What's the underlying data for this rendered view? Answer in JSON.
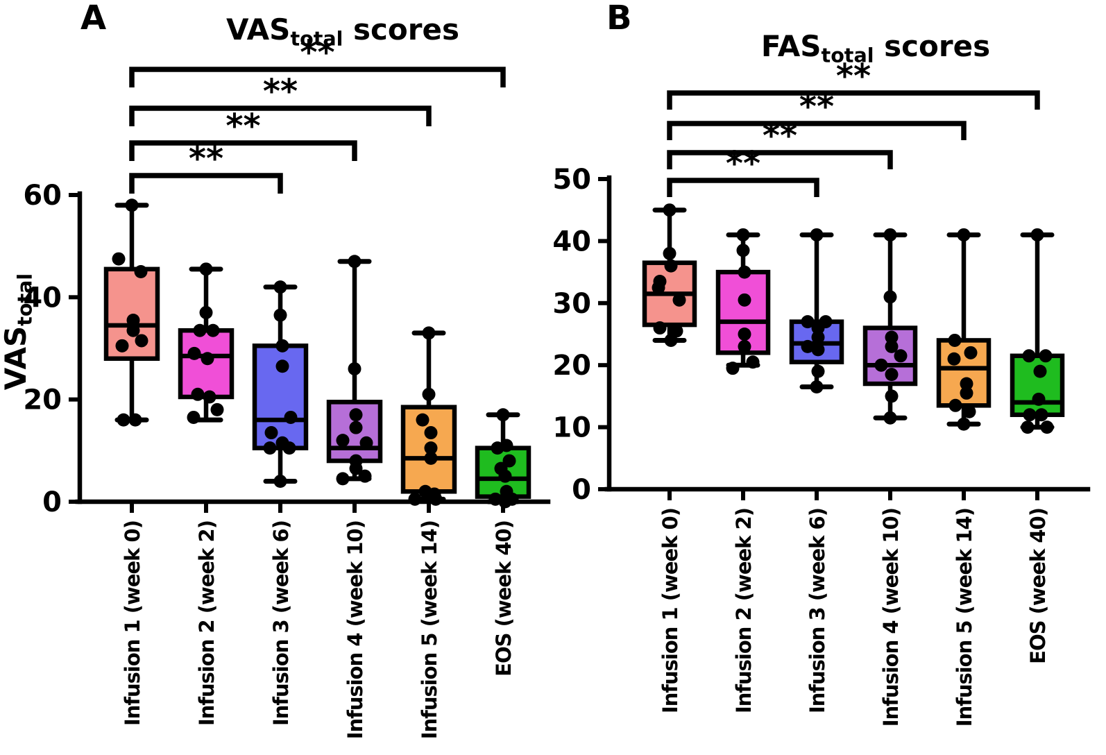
{
  "figure": {
    "background": "#FFFFFF",
    "panels": [
      {
        "letter": "A",
        "title": {
          "main": "VAS",
          "sub": "total",
          "rest": " scores"
        },
        "y_axis_label": {
          "main": "VAS",
          "sub": "total"
        }
      },
      {
        "letter": "B",
        "title": {
          "main": "FAS",
          "sub": "total",
          "rest": " scores"
        }
      }
    ]
  },
  "chart_data": [
    {
      "type": "boxplot",
      "title": "VAS_total scores",
      "ylabel": "VAS_total",
      "xlabel": "",
      "ylim": [
        0,
        60
      ],
      "yticks": [
        0,
        20,
        40,
        60
      ],
      "grid": false,
      "legend": "none",
      "categories": [
        "Infusion 1 (week 0)",
        "Infusion 2 (week 2)",
        "Infusion 3 (week 6)",
        "Infusion 4 (week 10)",
        "Infusion 5 (week 14)",
        "EOS (week 40)"
      ],
      "boxes": [
        {
          "category": "Infusion 1 (week 0)",
          "color": "#F5938D",
          "whisker_low": 16,
          "q1": 28,
          "median": 34.5,
          "q3": 45.5,
          "whisker_high": 58,
          "points": [
            [
              58,
              0
            ],
            [
              47.5,
              -19
            ],
            [
              45,
              13
            ],
            [
              35.5,
              2
            ],
            [
              33.5,
              2
            ],
            [
              31.5,
              14
            ],
            [
              30.5,
              -14
            ],
            [
              16,
              -12
            ],
            [
              16,
              5
            ]
          ]
        },
        {
          "category": "Infusion 2 (week 2)",
          "color": "#F04FD7",
          "whisker_low": 16,
          "q1": 20.5,
          "median": 28.5,
          "q3": 33.5,
          "whisker_high": 45.5,
          "points": [
            [
              45.5,
              0
            ],
            [
              37,
              0
            ],
            [
              33.5,
              -9
            ],
            [
              33.5,
              10
            ],
            [
              29,
              -17
            ],
            [
              28,
              2
            ],
            [
              21,
              -12
            ],
            [
              20.5,
              5
            ],
            [
              18,
              16
            ],
            [
              16.5,
              -18
            ]
          ]
        },
        {
          "category": "Infusion 3 (week 6)",
          "color": "#6868F0",
          "whisker_low": 4,
          "q1": 10.5,
          "median": 16,
          "q3": 30.5,
          "whisker_high": 42,
          "points": [
            [
              42,
              0
            ],
            [
              36.5,
              0
            ],
            [
              30.5,
              3
            ],
            [
              26.5,
              3
            ],
            [
              16.5,
              15
            ],
            [
              13.5,
              -13
            ],
            [
              11.5,
              3
            ],
            [
              10.5,
              -15
            ],
            [
              10.5,
              13
            ],
            [
              4,
              0
            ]
          ]
        },
        {
          "category": "Infusion 4 (week 10)",
          "color": "#B66FD8",
          "whisker_low": 4.5,
          "q1": 8,
          "median": 10.5,
          "q3": 19.5,
          "whisker_high": 47,
          "points": [
            [
              47,
              0
            ],
            [
              26,
              0
            ],
            [
              17,
              2
            ],
            [
              14.5,
              2
            ],
            [
              12,
              -17
            ],
            [
              11.5,
              17
            ],
            [
              8,
              2
            ],
            [
              6.5,
              2
            ],
            [
              5,
              15
            ],
            [
              4.5,
              -17
            ]
          ]
        },
        {
          "category": "Infusion 5 (week 14)",
          "color": "#F6A850",
          "whisker_low": 0.5,
          "q1": 2,
          "median": 8.5,
          "q3": 18.5,
          "whisker_high": 33,
          "points": [
            [
              33,
              0
            ],
            [
              21,
              0
            ],
            [
              16,
              -9
            ],
            [
              13.5,
              3
            ],
            [
              10.5,
              3
            ],
            [
              8.5,
              3
            ],
            [
              2,
              -5
            ],
            [
              1.5,
              8
            ],
            [
              0.5,
              -20
            ],
            [
              0.5,
              10
            ]
          ]
        },
        {
          "category": "EOS (week 40)",
          "color": "#1FBC1F",
          "whisker_low": 0,
          "q1": 1,
          "median": 4.5,
          "q3": 10.5,
          "whisker_high": 17,
          "points": [
            [
              17,
              0
            ],
            [
              11,
              5
            ],
            [
              10.5,
              -8
            ],
            [
              8,
              9
            ],
            [
              6.5,
              -3
            ],
            [
              5,
              3
            ],
            [
              2,
              5
            ],
            [
              0.5,
              -11
            ],
            [
              0.5,
              13
            ],
            [
              0,
              3
            ]
          ]
        }
      ],
      "significance": [
        {
          "from": 0,
          "to": 5,
          "label": "**"
        },
        {
          "from": 0,
          "to": 4,
          "label": "**"
        },
        {
          "from": 0,
          "to": 3,
          "label": "**"
        },
        {
          "from": 0,
          "to": 2,
          "label": "**"
        }
      ]
    },
    {
      "type": "boxplot",
      "title": "FAS_total scores",
      "ylabel": "",
      "xlabel": "",
      "ylim": [
        0,
        50
      ],
      "yticks": [
        0,
        10,
        20,
        30,
        40,
        50
      ],
      "grid": false,
      "legend": "none",
      "categories": [
        "Infusion 1 (week 0)",
        "Infusion 2 (week 2)",
        "Infusion 3 (week 6)",
        "Infusion 4 (week 10)",
        "Infusion 5 (week 14)",
        "EOS (week 40)"
      ],
      "boxes": [
        {
          "category": "Infusion 1 (week 0)",
          "color": "#F5938D",
          "whisker_low": 24,
          "q1": 26.5,
          "median": 31.5,
          "q3": 36.5,
          "whisker_high": 45,
          "points": [
            [
              45,
              0
            ],
            [
              38,
              0
            ],
            [
              36,
              2
            ],
            [
              33.5,
              -14
            ],
            [
              32.5,
              -16
            ],
            [
              30.5,
              14
            ],
            [
              26,
              -14
            ],
            [
              25.5,
              10
            ],
            [
              24,
              2
            ]
          ]
        },
        {
          "category": "Infusion 2 (week 2)",
          "color": "#F04FD7",
          "whisker_low": 20,
          "q1": 22,
          "median": 27,
          "q3": 35,
          "whisker_high": 41,
          "points": [
            [
              41,
              0
            ],
            [
              38.5,
              0
            ],
            [
              35,
              2
            ],
            [
              30.5,
              2
            ],
            [
              25,
              2
            ],
            [
              23,
              2
            ],
            [
              20.5,
              14
            ],
            [
              19.5,
              -15
            ]
          ]
        },
        {
          "category": "Infusion 3 (week 6)",
          "color": "#6868F0",
          "whisker_low": 16.5,
          "q1": 20.5,
          "median": 23.5,
          "q3": 27,
          "whisker_high": 41,
          "points": [
            [
              41,
              0
            ],
            [
              27,
              -13
            ],
            [
              27,
              13
            ],
            [
              26,
              2
            ],
            [
              24.5,
              2
            ],
            [
              23,
              -13
            ],
            [
              22.5,
              2
            ],
            [
              19,
              2
            ],
            [
              16.5,
              0
            ]
          ]
        },
        {
          "category": "Infusion 4 (week 10)",
          "color": "#B66FD8",
          "whisker_low": 11.5,
          "q1": 17,
          "median": 20,
          "q3": 26,
          "whisker_high": 41,
          "points": [
            [
              41,
              0
            ],
            [
              31,
              0
            ],
            [
              24.5,
              2
            ],
            [
              23,
              2
            ],
            [
              21.5,
              15
            ],
            [
              20,
              -13
            ],
            [
              18.5,
              2
            ],
            [
              15,
              2
            ],
            [
              11.5,
              0
            ]
          ]
        },
        {
          "category": "Infusion 5 (week 14)",
          "color": "#F6A850",
          "whisker_low": 10.5,
          "q1": 13.5,
          "median": 19.5,
          "q3": 24,
          "whisker_high": 41,
          "points": [
            [
              41,
              0
            ],
            [
              24,
              -13
            ],
            [
              22,
              10
            ],
            [
              21,
              -14
            ],
            [
              17,
              4
            ],
            [
              15.5,
              4
            ],
            [
              13.5,
              -12
            ],
            [
              12.5,
              8
            ],
            [
              10.5,
              0
            ]
          ]
        },
        {
          "category": "EOS (week 40)",
          "color": "#1FBC1F",
          "whisker_low": 10,
          "q1": 12,
          "median": 14,
          "q3": 21.5,
          "whisker_high": 41,
          "points": [
            [
              41,
              0
            ],
            [
              21.5,
              -12
            ],
            [
              21.5,
              12
            ],
            [
              19,
              4
            ],
            [
              14.5,
              2
            ],
            [
              12,
              -11
            ],
            [
              12,
              6
            ],
            [
              10,
              -14
            ],
            [
              10,
              14
            ]
          ]
        }
      ],
      "significance": [
        {
          "from": 0,
          "to": 5,
          "label": "**"
        },
        {
          "from": 0,
          "to": 4,
          "label": "**"
        },
        {
          "from": 0,
          "to": 3,
          "label": "**"
        },
        {
          "from": 0,
          "to": 2,
          "label": "**"
        }
      ]
    }
  ]
}
